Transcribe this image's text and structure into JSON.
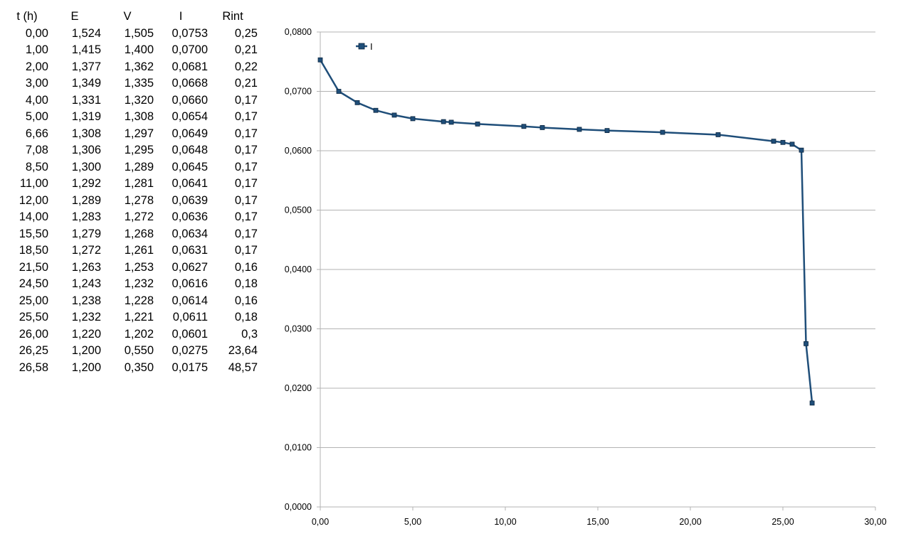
{
  "table": {
    "headers": [
      "t (h)",
      "E",
      "V",
      "I",
      "Rint"
    ],
    "rows": [
      [
        "0,00",
        "1,524",
        "1,505",
        "0,0753",
        "0,25"
      ],
      [
        "1,00",
        "1,415",
        "1,400",
        "0,0700",
        "0,21"
      ],
      [
        "2,00",
        "1,377",
        "1,362",
        "0,0681",
        "0,22"
      ],
      [
        "3,00",
        "1,349",
        "1,335",
        "0,0668",
        "0,21"
      ],
      [
        "4,00",
        "1,331",
        "1,320",
        "0,0660",
        "0,17"
      ],
      [
        "5,00",
        "1,319",
        "1,308",
        "0,0654",
        "0,17"
      ],
      [
        "6,66",
        "1,308",
        "1,297",
        "0,0649",
        "0,17"
      ],
      [
        "7,08",
        "1,306",
        "1,295",
        "0,0648",
        "0,17"
      ],
      [
        "8,50",
        "1,300",
        "1,289",
        "0,0645",
        "0,17"
      ],
      [
        "11,00",
        "1,292",
        "1,281",
        "0,0641",
        "0,17"
      ],
      [
        "12,00",
        "1,289",
        "1,278",
        "0,0639",
        "0,17"
      ],
      [
        "14,00",
        "1,283",
        "1,272",
        "0,0636",
        "0,17"
      ],
      [
        "15,50",
        "1,279",
        "1,268",
        "0,0634",
        "0,17"
      ],
      [
        "18,50",
        "1,272",
        "1,261",
        "0,0631",
        "0,17"
      ],
      [
        "21,50",
        "1,263",
        "1,253",
        "0,0627",
        "0,16"
      ],
      [
        "24,50",
        "1,243",
        "1,232",
        "0,0616",
        "0,18"
      ],
      [
        "25,00",
        "1,238",
        "1,228",
        "0,0614",
        "0,16"
      ],
      [
        "25,50",
        "1,232",
        "1,221",
        "0,0611",
        "0,18"
      ],
      [
        "26,00",
        "1,220",
        "1,202",
        "0,0601",
        "0,3"
      ],
      [
        "26,25",
        "1,200",
        "0,550",
        "0,0275",
        "23,64"
      ],
      [
        "26,58",
        "1,200",
        "0,350",
        "0,0175",
        "48,57"
      ]
    ]
  },
  "chart_data": {
    "type": "line",
    "title": "",
    "xlabel": "",
    "ylabel": "",
    "xlim": [
      0,
      30
    ],
    "ylim": [
      0,
      0.08
    ],
    "x_ticks": [
      "0,00",
      "5,00",
      "10,00",
      "15,00",
      "20,00",
      "25,00",
      "30,00"
    ],
    "y_ticks": [
      "0,0000",
      "0,0100",
      "0,0200",
      "0,0300",
      "0,0400",
      "0,0500",
      "0,0600",
      "0,0700",
      "0,0800"
    ],
    "grid": "horizontal",
    "legend_position": "top-left",
    "series": [
      {
        "name": "I",
        "color": "#1f4e79",
        "marker": "square",
        "x": [
          0,
          1,
          2,
          3,
          4,
          5,
          6.66,
          7.08,
          8.5,
          11,
          12,
          14,
          15.5,
          18.5,
          21.5,
          24.5,
          25,
          25.5,
          26,
          26.25,
          26.58
        ],
        "y": [
          0.0753,
          0.07,
          0.0681,
          0.0668,
          0.066,
          0.0654,
          0.0649,
          0.0648,
          0.0645,
          0.0641,
          0.0639,
          0.0636,
          0.0634,
          0.0631,
          0.0627,
          0.0616,
          0.0614,
          0.0611,
          0.0601,
          0.0275,
          0.0175
        ]
      }
    ]
  }
}
